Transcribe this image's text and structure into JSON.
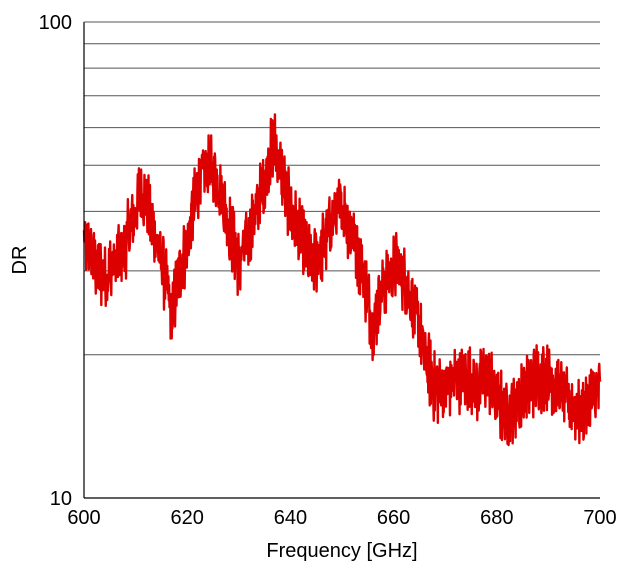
{
  "chart_data": {
    "type": "line",
    "xlabel": "Frequency [GHz]",
    "ylabel": "DR",
    "x_scale": "linear",
    "y_scale": "log",
    "xlim": [
      600,
      700
    ],
    "ylim": [
      10,
      100
    ],
    "x_ticks": [
      "600",
      "620",
      "640",
      "660",
      "680",
      "700"
    ],
    "y_ticks": [
      "10",
      "100"
    ],
    "grid": "horizontal minor log gridlines",
    "series_color": "#dd0000",
    "series": [
      {
        "x": [
          600,
          602,
          604,
          606,
          608,
          610,
          611,
          612,
          614,
          616,
          617,
          618,
          620,
          622,
          624,
          626,
          628,
          630,
          632,
          634,
          636,
          637,
          638,
          640,
          642,
          644,
          646,
          648,
          650,
          652,
          654,
          656,
          658,
          660,
          661,
          662,
          664,
          666,
          668,
          670,
          672,
          674,
          676,
          678,
          680,
          682,
          684,
          686,
          688,
          690,
          692,
          694,
          696,
          698,
          700
        ],
        "y": [
          35,
          31,
          29,
          31,
          34,
          40,
          45,
          42,
          35,
          28,
          24,
          28,
          34,
          45,
          50,
          46,
          38,
          31,
          36,
          42,
          52,
          55,
          49,
          40,
          35,
          31,
          33,
          38,
          41,
          36,
          30,
          23,
          28,
          30,
          31,
          29,
          25,
          20,
          17,
          17,
          18,
          18,
          17,
          18,
          16,
          15,
          16,
          17,
          18,
          18,
          17,
          16,
          15,
          16,
          17
        ]
      }
    ]
  }
}
